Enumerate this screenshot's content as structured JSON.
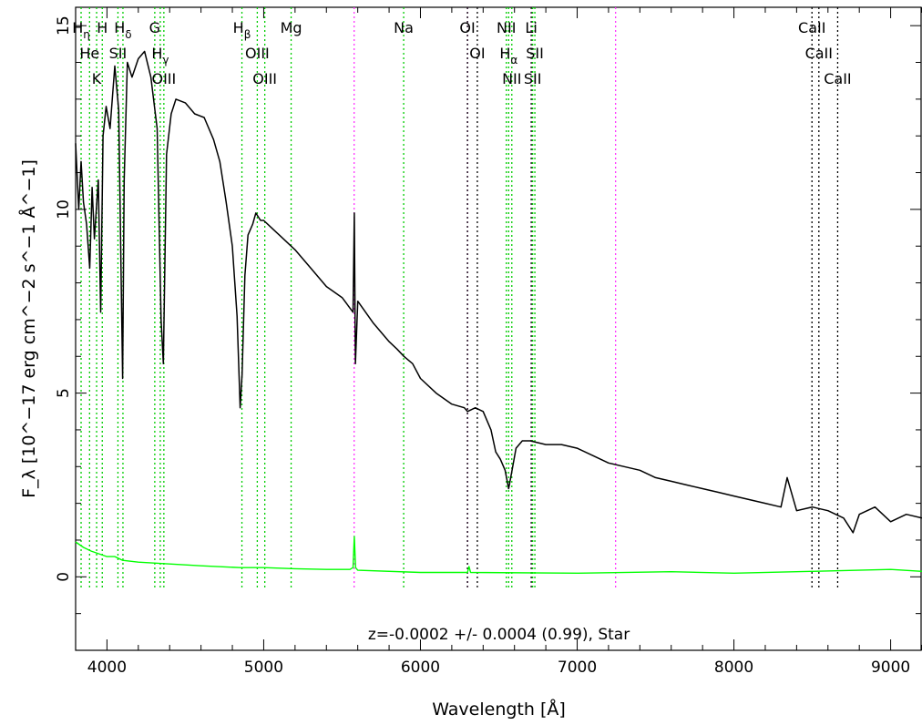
{
  "chart_data": {
    "type": "line",
    "xlabel": "Wavelength [Å]",
    "ylabel": "F_λ [10^−17 erg cm^−2 s^−1 Å^−1]",
    "xlim": [
      3800,
      9200
    ],
    "ylim": [
      -2,
      15.5
    ],
    "x_ticks": [
      "4000",
      "5000",
      "6000",
      "7000",
      "8000",
      "9000"
    ],
    "y_ticks": [
      "0",
      "5",
      "10",
      "15"
    ],
    "annotation": "z=-0.0002 +/- 0.0004 (0.99), Star",
    "colors": {
      "flux": "#000000",
      "error": "#00ff00",
      "green_lines": "#00cc00",
      "magenta_lines": "#ff33ff",
      "black_lines": "#000000"
    },
    "series": [
      {
        "role": "flux",
        "x": [
          3800,
          3820,
          3835,
          3850,
          3870,
          3890,
          3905,
          3920,
          3945,
          3960,
          3975,
          3995,
          4020,
          4050,
          4075,
          4100,
          4110,
          4130,
          4160,
          4200,
          4240,
          4280,
          4320,
          4345,
          4360,
          4380,
          4410,
          4440,
          4500,
          4560,
          4620,
          4680,
          4720,
          4760,
          4800,
          4830,
          4850,
          4862,
          4880,
          4900,
          4930,
          4950,
          4980,
          5000,
          5050,
          5100,
          5200,
          5300,
          5400,
          5500,
          5570,
          5578,
          5585,
          5600,
          5700,
          5800,
          5850,
          5895,
          5950,
          6000,
          6100,
          6200,
          6280,
          6300,
          6350,
          6400,
          6450,
          6480,
          6510,
          6540,
          6563,
          6580,
          6610,
          6650,
          6700,
          6800,
          6900,
          7000,
          7100,
          7200,
          7300,
          7400,
          7500,
          7600,
          7700,
          7800,
          7900,
          8000,
          8100,
          8200,
          8300,
          8340,
          8400,
          8500,
          8600,
          8700,
          8760,
          8800,
          8900,
          9000,
          9100,
          9200
        ],
        "y": [
          11.8,
          10.0,
          11.3,
          10.2,
          9.6,
          8.4,
          10.6,
          9.2,
          10.8,
          7.2,
          12.0,
          12.8,
          12.2,
          13.9,
          12.7,
          5.4,
          10.8,
          14.0,
          13.6,
          14.1,
          14.3,
          13.6,
          12.2,
          7.0,
          5.8,
          11.5,
          12.6,
          13.0,
          12.9,
          12.6,
          12.5,
          11.9,
          11.3,
          10.2,
          9.0,
          7.1,
          4.6,
          5.5,
          8.2,
          9.3,
          9.6,
          9.9,
          9.7,
          9.7,
          9.5,
          9.3,
          8.9,
          8.4,
          7.9,
          7.6,
          7.2,
          9.9,
          5.8,
          7.5,
          6.9,
          6.4,
          6.2,
          6.0,
          5.8,
          5.4,
          5.0,
          4.7,
          4.6,
          4.5,
          4.6,
          4.5,
          4.0,
          3.4,
          3.2,
          2.9,
          2.4,
          2.8,
          3.5,
          3.7,
          3.7,
          3.6,
          3.6,
          3.5,
          3.3,
          3.1,
          3.0,
          2.9,
          2.7,
          2.6,
          2.5,
          2.4,
          2.3,
          2.2,
          2.1,
          2.0,
          1.9,
          2.7,
          1.8,
          1.9,
          1.8,
          1.6,
          1.2,
          1.7,
          1.9,
          1.5,
          1.7,
          1.6
        ]
      },
      {
        "role": "error",
        "x": [
          3800,
          3850,
          3900,
          4000,
          4050,
          4100,
          4200,
          4400,
          4600,
          4850,
          5000,
          5200,
          5400,
          5550,
          5570,
          5578,
          5586,
          5600,
          6000,
          6300,
          6310,
          6320,
          7000,
          7600,
          8000,
          8500,
          9000,
          9200
        ],
        "y": [
          0.95,
          0.8,
          0.7,
          0.55,
          0.55,
          0.45,
          0.4,
          0.35,
          0.3,
          0.25,
          0.25,
          0.22,
          0.2,
          0.2,
          0.25,
          1.1,
          0.25,
          0.18,
          0.12,
          0.12,
          0.28,
          0.12,
          0.1,
          0.14,
          0.1,
          0.15,
          0.2,
          0.15
        ]
      }
    ],
    "lines": [
      {
        "x": 3835,
        "color": "green",
        "label": "H_η"
      },
      {
        "x": 3889,
        "color": "green",
        "label": "He"
      },
      {
        "x": 3934,
        "color": "green",
        "label": "K"
      },
      {
        "x": 3970,
        "color": "green",
        "label": "H"
      },
      {
        "x": 4070,
        "color": "green",
        "label": "SII"
      },
      {
        "x": 4102,
        "color": "green",
        "label": "H_δ"
      },
      {
        "x": 4305,
        "color": "green",
        "label": "G"
      },
      {
        "x": 4340,
        "color": "green",
        "label": "H_γ"
      },
      {
        "x": 4363,
        "color": "green",
        "label": "OIII"
      },
      {
        "x": 4861,
        "color": "green",
        "label": "H_β"
      },
      {
        "x": 4959,
        "color": "green",
        "label": "OIII"
      },
      {
        "x": 5007,
        "color": "green",
        "label": "OIII"
      },
      {
        "x": 5175,
        "color": "green",
        "label": "Mg"
      },
      {
        "x": 5577,
        "color": "magenta",
        "label": ""
      },
      {
        "x": 5893,
        "color": "green",
        "label": "Na"
      },
      {
        "x": 6300,
        "color": "magenta",
        "label": ""
      },
      {
        "x": 6300,
        "color": "black",
        "label": "OI"
      },
      {
        "x": 6363,
        "color": "black",
        "label": "OI"
      },
      {
        "x": 6548,
        "color": "green",
        "label": "NII"
      },
      {
        "x": 6563,
        "color": "green",
        "label": "H_α"
      },
      {
        "x": 6583,
        "color": "green",
        "label": "NII"
      },
      {
        "x": 6707,
        "color": "black",
        "label": "Li"
      },
      {
        "x": 6716,
        "color": "green",
        "label": "SII"
      },
      {
        "x": 6730,
        "color": "green",
        "label": "SII"
      },
      {
        "x": 7245,
        "color": "magenta",
        "label": ""
      },
      {
        "x": 8498,
        "color": "black",
        "label": "CaII"
      },
      {
        "x": 8542,
        "color": "black",
        "label": "CaII"
      },
      {
        "x": 8662,
        "color": "black",
        "label": "CaII"
      }
    ]
  }
}
